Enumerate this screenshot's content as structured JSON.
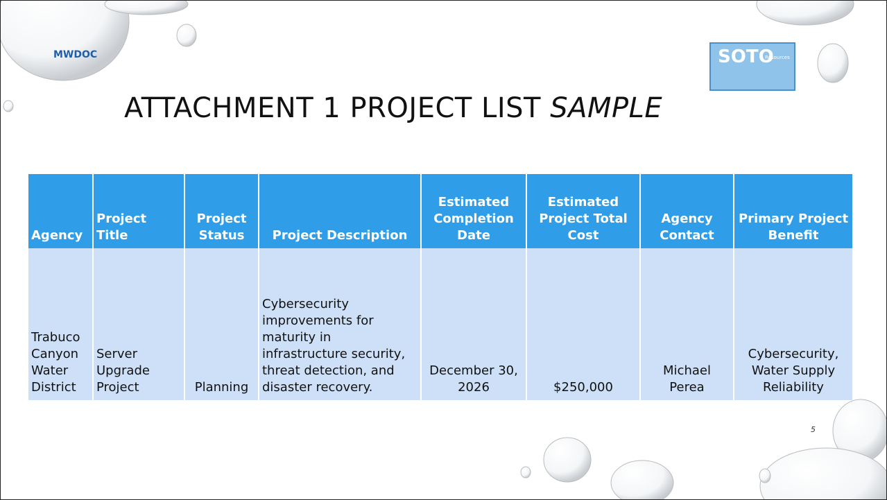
{
  "logos": {
    "left": "MWDOC",
    "right": {
      "name": "SOTO",
      "sub": "Resources"
    }
  },
  "title": {
    "text": "ATTACHMENT 1 PROJECT LIST",
    "emphasis": "SAMPLE"
  },
  "table": {
    "headers": [
      "Agency",
      "Project Title",
      "Project Status",
      "Project Description",
      "Estimated Completion Date",
      "Estimated Project Total Cost",
      "Agency Contact",
      "Primary Project Benefit"
    ],
    "rows": [
      [
        "Trabuco Canyon Water District",
        "Server Upgrade Project",
        "Planning",
        "Cybersecurity improvements for maturity in infrastructure security, threat detection, and disaster recovery.",
        "December 30, 2026",
        "$250,000",
        "Michael Perea",
        "Cybersecurity, Water Supply Reliability"
      ]
    ]
  },
  "page_number": "5"
}
